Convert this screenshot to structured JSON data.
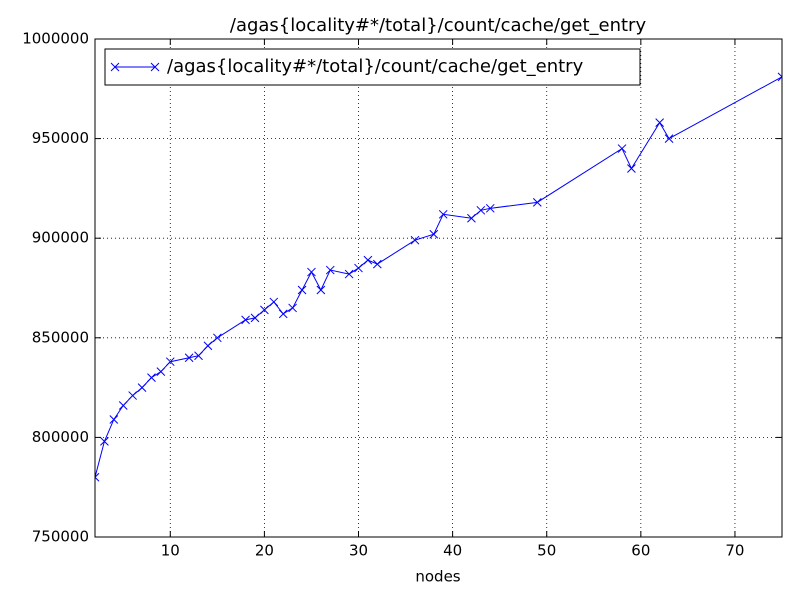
{
  "chart_data": {
    "type": "line",
    "title": "/agas{locality#*/total}/count/cache/get_entry",
    "xlabel": "nodes",
    "x": [
      2,
      3,
      4,
      5,
      6,
      7,
      8,
      9,
      10,
      12,
      13,
      14,
      15,
      18,
      19,
      20,
      21,
      22,
      23,
      24,
      25,
      26,
      27,
      29,
      30,
      31,
      32,
      36,
      38,
      39,
      42,
      43,
      44,
      49,
      58,
      59,
      62,
      63,
      75
    ],
    "series": [
      {
        "name": "/agas{locality#*/total}/count/cache/get_entry",
        "color": "#0000ff",
        "values": [
          780000,
          798000,
          809000,
          816000,
          821000,
          825000,
          830000,
          833000,
          838000,
          840000,
          841000,
          846000,
          850000,
          859000,
          860000,
          864000,
          868000,
          862000,
          865000,
          874000,
          883000,
          874000,
          884000,
          882000,
          885000,
          889000,
          887000,
          899000,
          902000,
          912000,
          910000,
          914000,
          915000,
          918000,
          945000,
          935000,
          958000,
          950000,
          981000
        ]
      }
    ],
    "xlim": [
      2,
      75
    ],
    "xticks": [
      10,
      20,
      30,
      40,
      50,
      60,
      70
    ],
    "ylim": [
      750000,
      1000000
    ],
    "yticks": [
      750000,
      800000,
      850000,
      900000,
      950000,
      1000000
    ],
    "grid": true,
    "legend": "upper left"
  }
}
